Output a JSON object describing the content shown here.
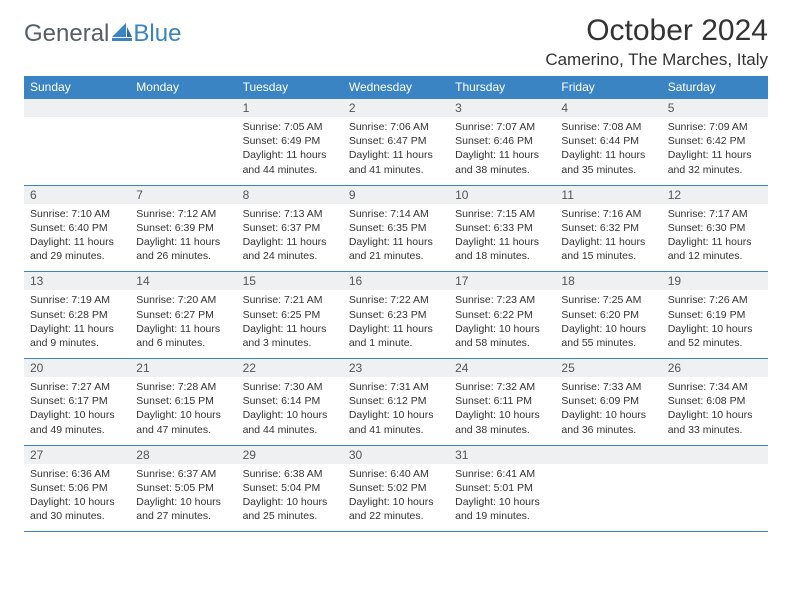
{
  "brand": {
    "word1": "General",
    "word2": "Blue",
    "color_primary": "#3a84c4",
    "color_text": "#555d66"
  },
  "title": "October 2024",
  "location": "Camerino, The Marches, Italy",
  "weekdays": [
    "Sunday",
    "Monday",
    "Tuesday",
    "Wednesday",
    "Thursday",
    "Friday",
    "Saturday"
  ],
  "header_bg": "#3a84c4",
  "header_fg": "#ffffff",
  "daynum_bg": "#eef0f2",
  "border_color": "#3a84c4",
  "font_family": "Arial, Helvetica, sans-serif",
  "title_fontsize": 30,
  "location_fontsize": 17,
  "weekday_fontsize": 12,
  "daynum_fontsize": 12,
  "body_fontsize": 10.5,
  "weeks": [
    [
      {
        "n": "",
        "sr": "",
        "ss": "",
        "dl": ""
      },
      {
        "n": "",
        "sr": "",
        "ss": "",
        "dl": ""
      },
      {
        "n": "1",
        "sr": "Sunrise: 7:05 AM",
        "ss": "Sunset: 6:49 PM",
        "dl": "Daylight: 11 hours and 44 minutes."
      },
      {
        "n": "2",
        "sr": "Sunrise: 7:06 AM",
        "ss": "Sunset: 6:47 PM",
        "dl": "Daylight: 11 hours and 41 minutes."
      },
      {
        "n": "3",
        "sr": "Sunrise: 7:07 AM",
        "ss": "Sunset: 6:46 PM",
        "dl": "Daylight: 11 hours and 38 minutes."
      },
      {
        "n": "4",
        "sr": "Sunrise: 7:08 AM",
        "ss": "Sunset: 6:44 PM",
        "dl": "Daylight: 11 hours and 35 minutes."
      },
      {
        "n": "5",
        "sr": "Sunrise: 7:09 AM",
        "ss": "Sunset: 6:42 PM",
        "dl": "Daylight: 11 hours and 32 minutes."
      }
    ],
    [
      {
        "n": "6",
        "sr": "Sunrise: 7:10 AM",
        "ss": "Sunset: 6:40 PM",
        "dl": "Daylight: 11 hours and 29 minutes."
      },
      {
        "n": "7",
        "sr": "Sunrise: 7:12 AM",
        "ss": "Sunset: 6:39 PM",
        "dl": "Daylight: 11 hours and 26 minutes."
      },
      {
        "n": "8",
        "sr": "Sunrise: 7:13 AM",
        "ss": "Sunset: 6:37 PM",
        "dl": "Daylight: 11 hours and 24 minutes."
      },
      {
        "n": "9",
        "sr": "Sunrise: 7:14 AM",
        "ss": "Sunset: 6:35 PM",
        "dl": "Daylight: 11 hours and 21 minutes."
      },
      {
        "n": "10",
        "sr": "Sunrise: 7:15 AM",
        "ss": "Sunset: 6:33 PM",
        "dl": "Daylight: 11 hours and 18 minutes."
      },
      {
        "n": "11",
        "sr": "Sunrise: 7:16 AM",
        "ss": "Sunset: 6:32 PM",
        "dl": "Daylight: 11 hours and 15 minutes."
      },
      {
        "n": "12",
        "sr": "Sunrise: 7:17 AM",
        "ss": "Sunset: 6:30 PM",
        "dl": "Daylight: 11 hours and 12 minutes."
      }
    ],
    [
      {
        "n": "13",
        "sr": "Sunrise: 7:19 AM",
        "ss": "Sunset: 6:28 PM",
        "dl": "Daylight: 11 hours and 9 minutes."
      },
      {
        "n": "14",
        "sr": "Sunrise: 7:20 AM",
        "ss": "Sunset: 6:27 PM",
        "dl": "Daylight: 11 hours and 6 minutes."
      },
      {
        "n": "15",
        "sr": "Sunrise: 7:21 AM",
        "ss": "Sunset: 6:25 PM",
        "dl": "Daylight: 11 hours and 3 minutes."
      },
      {
        "n": "16",
        "sr": "Sunrise: 7:22 AM",
        "ss": "Sunset: 6:23 PM",
        "dl": "Daylight: 11 hours and 1 minute."
      },
      {
        "n": "17",
        "sr": "Sunrise: 7:23 AM",
        "ss": "Sunset: 6:22 PM",
        "dl": "Daylight: 10 hours and 58 minutes."
      },
      {
        "n": "18",
        "sr": "Sunrise: 7:25 AM",
        "ss": "Sunset: 6:20 PM",
        "dl": "Daylight: 10 hours and 55 minutes."
      },
      {
        "n": "19",
        "sr": "Sunrise: 7:26 AM",
        "ss": "Sunset: 6:19 PM",
        "dl": "Daylight: 10 hours and 52 minutes."
      }
    ],
    [
      {
        "n": "20",
        "sr": "Sunrise: 7:27 AM",
        "ss": "Sunset: 6:17 PM",
        "dl": "Daylight: 10 hours and 49 minutes."
      },
      {
        "n": "21",
        "sr": "Sunrise: 7:28 AM",
        "ss": "Sunset: 6:15 PM",
        "dl": "Daylight: 10 hours and 47 minutes."
      },
      {
        "n": "22",
        "sr": "Sunrise: 7:30 AM",
        "ss": "Sunset: 6:14 PM",
        "dl": "Daylight: 10 hours and 44 minutes."
      },
      {
        "n": "23",
        "sr": "Sunrise: 7:31 AM",
        "ss": "Sunset: 6:12 PM",
        "dl": "Daylight: 10 hours and 41 minutes."
      },
      {
        "n": "24",
        "sr": "Sunrise: 7:32 AM",
        "ss": "Sunset: 6:11 PM",
        "dl": "Daylight: 10 hours and 38 minutes."
      },
      {
        "n": "25",
        "sr": "Sunrise: 7:33 AM",
        "ss": "Sunset: 6:09 PM",
        "dl": "Daylight: 10 hours and 36 minutes."
      },
      {
        "n": "26",
        "sr": "Sunrise: 7:34 AM",
        "ss": "Sunset: 6:08 PM",
        "dl": "Daylight: 10 hours and 33 minutes."
      }
    ],
    [
      {
        "n": "27",
        "sr": "Sunrise: 6:36 AM",
        "ss": "Sunset: 5:06 PM",
        "dl": "Daylight: 10 hours and 30 minutes."
      },
      {
        "n": "28",
        "sr": "Sunrise: 6:37 AM",
        "ss": "Sunset: 5:05 PM",
        "dl": "Daylight: 10 hours and 27 minutes."
      },
      {
        "n": "29",
        "sr": "Sunrise: 6:38 AM",
        "ss": "Sunset: 5:04 PM",
        "dl": "Daylight: 10 hours and 25 minutes."
      },
      {
        "n": "30",
        "sr": "Sunrise: 6:40 AM",
        "ss": "Sunset: 5:02 PM",
        "dl": "Daylight: 10 hours and 22 minutes."
      },
      {
        "n": "31",
        "sr": "Sunrise: 6:41 AM",
        "ss": "Sunset: 5:01 PM",
        "dl": "Daylight: 10 hours and 19 minutes."
      },
      {
        "n": "",
        "sr": "",
        "ss": "",
        "dl": ""
      },
      {
        "n": "",
        "sr": "",
        "ss": "",
        "dl": ""
      }
    ]
  ]
}
